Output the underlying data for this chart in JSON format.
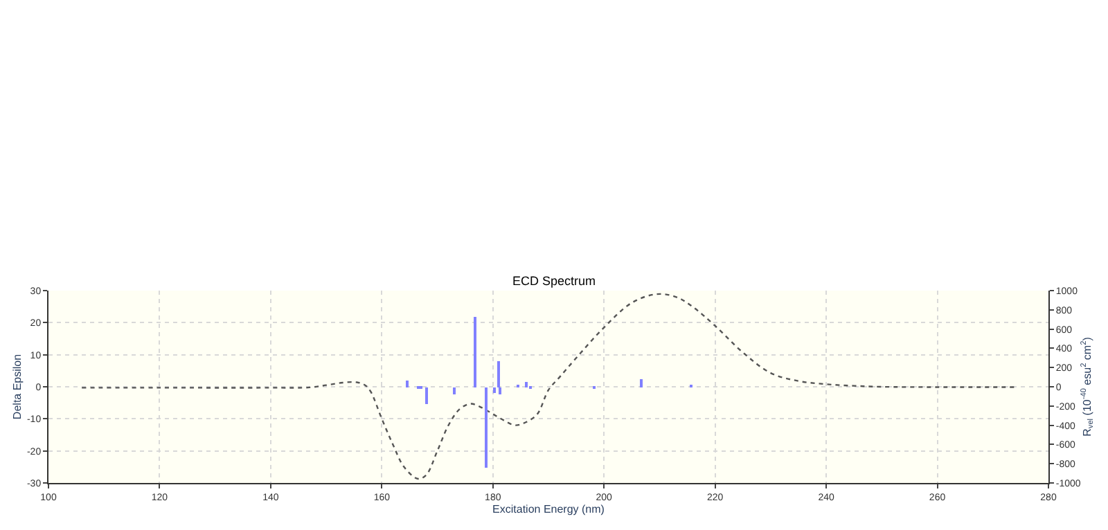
{
  "chart_data": {
    "type": "line",
    "title": "ECD Spectrum",
    "xlabel": "Excitation Energy (nm)",
    "ylabel": "Delta Epsilon",
    "y2label": "R$_{vel}$ (10$^{-40}$ esu$^{2}$ cm$^{2}$)",
    "xlim": [
      100,
      280
    ],
    "xticks": [
      100,
      120,
      140,
      160,
      180,
      200,
      220,
      240,
      260,
      280
    ],
    "ylim": [
      -30,
      30
    ],
    "yticks": [
      -30,
      -20,
      -10,
      0,
      10,
      20,
      30
    ],
    "y2lim": [
      -1000,
      1000
    ],
    "y2ticks": [
      -1000,
      -800,
      -600,
      -400,
      -200,
      0,
      200,
      400,
      600,
      800,
      1000
    ],
    "grid": true,
    "marker": "none",
    "series": [
      {
        "color": "#555555",
        "line_style": "dotted",
        "x": [
          106,
          120,
          140,
          147,
          150,
          153,
          155.5,
          157,
          158,
          160,
          162,
          164,
          166.5,
          168,
          170,
          172,
          174,
          176,
          178,
          180,
          182,
          184,
          186,
          188,
          190,
          192,
          195,
          200,
          205,
          209.5,
          213,
          216,
          220,
          225,
          230,
          235,
          240,
          245,
          250,
          260,
          274
        ],
        "values": [
          -0.3,
          -0.3,
          -0.3,
          -0.2,
          0.5,
          1.3,
          1.4,
          0.5,
          -1.5,
          -10,
          -18,
          -25,
          -28.7,
          -27.5,
          -20,
          -12,
          -7,
          -5.3,
          -6.5,
          -8.5,
          -10.5,
          -12,
          -11,
          -8.5,
          -1,
          3,
          9,
          18.5,
          26.2,
          28.9,
          28,
          24.9,
          19,
          10.7,
          4.3,
          1.8,
          0.8,
          0.3,
          0,
          -0.1,
          -0.1
        ]
      },
      {
        "type": "bar",
        "axis": "y2",
        "color": "#8080ff",
        "x": [
          164.5,
          166.6,
          167.2,
          168.2,
          173.2,
          176.9,
          178.9,
          180.4,
          181,
          181.4,
          184.6,
          186,
          186.8,
          198.4,
          206.8,
          215.8
        ],
        "values": [
          60,
          -10,
          -20,
          -180,
          -80,
          730,
          -840,
          -60,
          260,
          -80,
          20,
          50,
          -20,
          -20,
          80,
          10
        ]
      }
    ]
  }
}
